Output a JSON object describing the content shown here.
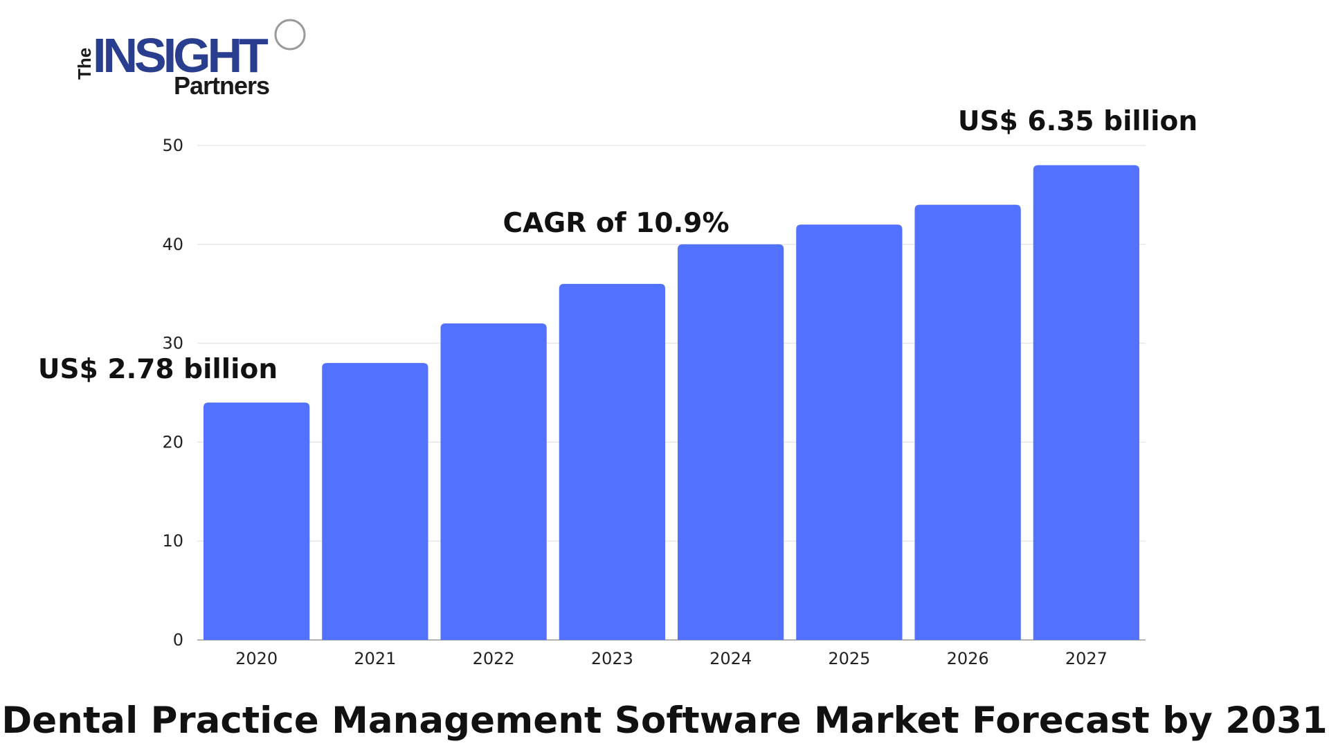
{
  "logo": {
    "line_the": "The",
    "line_insight": "INSIGHT",
    "line_partners": "Partners",
    "colors": {
      "the": "#1a1a1a",
      "insight": "#2a3e8f",
      "partners": "#1a1a1a"
    }
  },
  "chart_data": {
    "type": "bar",
    "title": "Dental Practice Management Software Market Forecast by 2031",
    "xlabel": "",
    "ylabel": "",
    "categories": [
      "2020",
      "2021",
      "2022",
      "2023",
      "2024",
      "2025",
      "2026",
      "2027"
    ],
    "values": [
      24,
      28,
      32,
      36,
      40,
      42,
      44,
      48
    ],
    "ylim": [
      0,
      50
    ],
    "yticks": [
      0,
      10,
      20,
      30,
      40,
      50
    ],
    "grid": true,
    "bar_color": "#5271ff",
    "annotations": [
      {
        "text": "US$ 2.78 billion",
        "near_category": "2020"
      },
      {
        "text": "CAGR of 10.9%",
        "near_category": "2023"
      },
      {
        "text": "US$ 6.35 billion",
        "near_category": "2027"
      }
    ]
  }
}
